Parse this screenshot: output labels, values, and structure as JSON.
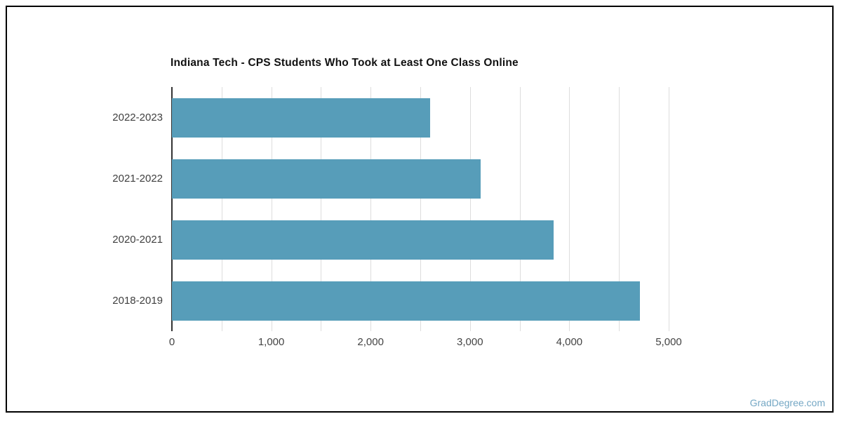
{
  "chart_data": {
    "type": "bar",
    "orientation": "horizontal",
    "title": "Indiana Tech - CPS Students Who Took at Least One Class Online",
    "categories": [
      "2022-2023",
      "2021-2022",
      "2020-2021",
      "2018-2019"
    ],
    "values": [
      2600,
      3110,
      3840,
      4710
    ],
    "xlabel": "",
    "ylabel": "",
    "xlim": [
      0,
      5000
    ],
    "grid_step": 500,
    "label_step": 1000,
    "x_tick_labels": [
      "0",
      "1,000",
      "2,000",
      "3,000",
      "4,000",
      "5,000"
    ],
    "grid": true,
    "legend": false,
    "bar_color": "#579DB9",
    "gridline_color": "#dddddd",
    "axis_line_color": "#333333",
    "category_label_color": "#3f3f3f",
    "tick_label_color": "#444444",
    "title_color": "#111111"
  },
  "watermark": {
    "text": "GradDegree.com",
    "color": "#74A7C4"
  }
}
